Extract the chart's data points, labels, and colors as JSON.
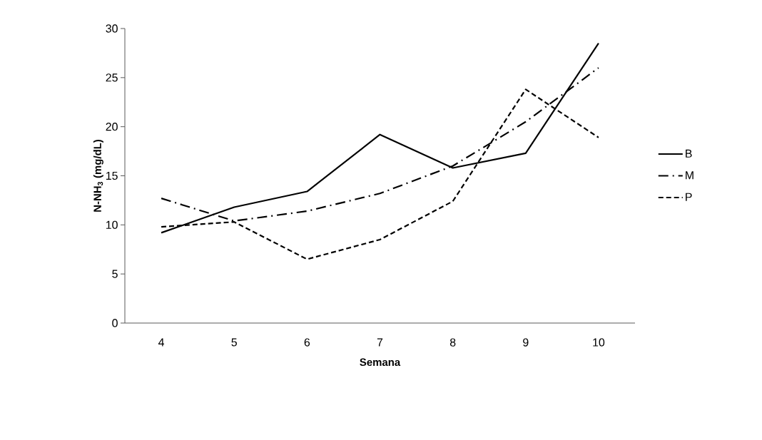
{
  "chart_data": {
    "type": "line",
    "xlabel": "Semana",
    "ylabel": "N-NH$_{3}$ (mg/dL)",
    "categories": [
      "4",
      "5",
      "6",
      "7",
      "8",
      "9",
      "10"
    ],
    "series": [
      {
        "name": "B",
        "color": "#000000",
        "line_style": "solid",
        "values": [
          9.2,
          11.8,
          13.4,
          19.2,
          15.8,
          17.3,
          28.5
        ]
      },
      {
        "name": "M",
        "color": "#000000",
        "line_style": "dashdot",
        "values": [
          12.7,
          10.4,
          11.4,
          13.2,
          16.0,
          20.5,
          26.0
        ]
      },
      {
        "name": "P",
        "color": "#000000",
        "line_style": "dashed",
        "values": [
          9.8,
          10.3,
          6.5,
          8.5,
          12.4,
          23.8,
          18.9
        ]
      }
    ],
    "ylim": [
      0,
      30
    ],
    "yticks": [
      0,
      5,
      10,
      15,
      20,
      25,
      30
    ],
    "grid": false,
    "legend": "right",
    "marker": "none"
  }
}
